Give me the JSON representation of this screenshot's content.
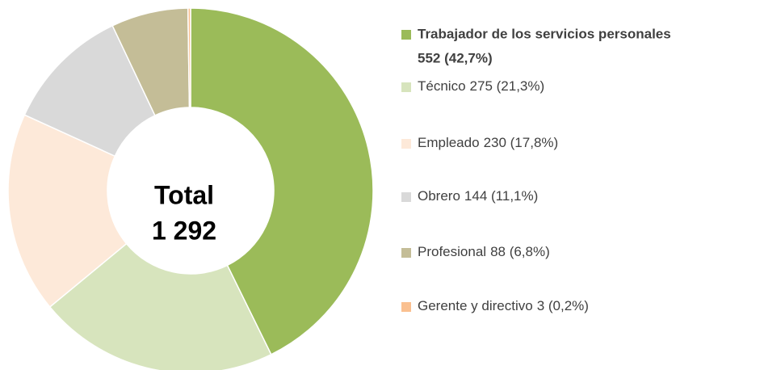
{
  "chart_data": {
    "type": "donut",
    "categories": [
      "Trabajador de los servicios personales",
      "Técnico",
      "Empleado",
      "Obrero",
      "Profesional",
      "Gerente y directivo"
    ],
    "values": [
      552,
      275,
      230,
      144,
      88,
      3
    ],
    "value_labels": [
      "552 (42,7%)",
      "275 (21,3%)",
      "230 (17,8%)",
      "144 (11,1%)",
      "88 (6,8%)",
      "3 (0,2%)"
    ],
    "colors": [
      "#9bbb59",
      "#d7e4bd",
      "#fde9d9",
      "#d9d9d9",
      "#c4bd97",
      "#fac090"
    ],
    "center_title": "Total",
    "total": {
      "value": 1292,
      "label": "1 292"
    }
  }
}
